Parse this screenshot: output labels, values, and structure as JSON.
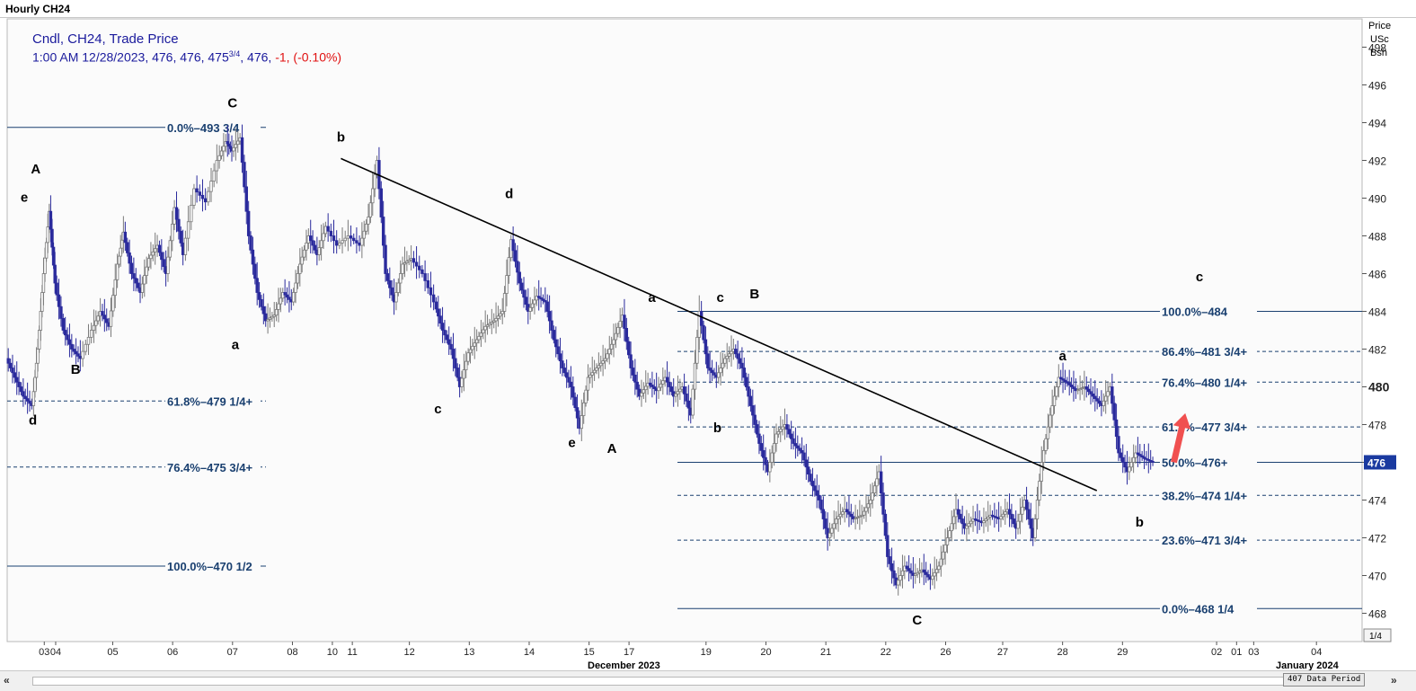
{
  "window": {
    "title": "Hourly CH24"
  },
  "legend": {
    "line1": "Cndl, CH24, Trade Price",
    "line2_prefix": "1:00 AM 12/28/2023, 476, 476, 475",
    "line2_frac": "3/4",
    "line2_mid": ", 476, ",
    "line2_change": "-1, (-0.10%)"
  },
  "axis": {
    "header": [
      "Price",
      "USc",
      "Bsh"
    ],
    "last_price_label": "476",
    "bold_tick": "480",
    "corner_label": "1/4",
    "month_labels": [
      "December 2023",
      "January 2024"
    ]
  },
  "footer": {
    "data_period": "407 Data Period",
    "left_btn": "«",
    "right_btn": "»"
  },
  "colors": {
    "candle": "#2a2a9c",
    "candle_up_wick": "#7a7a7a",
    "fib_line": "#1a4070",
    "fib_text": "#1a4070",
    "trendline": "#000000",
    "arrow": "#f05050",
    "price_badge_bg": "#1a3aa0"
  },
  "chart_data": {
    "type": "candlestick",
    "title": "Hourly CH24",
    "instrument": "CH24",
    "ylabel": "Price USc Bsh",
    "ylim": [
      466.5,
      499.5
    ],
    "yticks": [
      468,
      470,
      472,
      474,
      476,
      478,
      480,
      482,
      484,
      486,
      488,
      490,
      492,
      494,
      496,
      498
    ],
    "xlabel": "",
    "x_ticks": [
      {
        "label": "03",
        "t": 1.3
      },
      {
        "label": "04",
        "t": 1.7
      },
      {
        "label": "05",
        "t": 3.7
      },
      {
        "label": "06",
        "t": 5.8
      },
      {
        "label": "07",
        "t": 7.9
      },
      {
        "label": "08",
        "t": 10.0
      },
      {
        "label": "10",
        "t": 11.4
      },
      {
        "label": "11",
        "t": 12.1
      },
      {
        "label": "12",
        "t": 14.1
      },
      {
        "label": "13",
        "t": 16.2
      },
      {
        "label": "14",
        "t": 18.3
      },
      {
        "label": "15",
        "t": 20.4
      },
      {
        "label": "17",
        "t": 21.8
      },
      {
        "label": "19",
        "t": 24.5
      },
      {
        "label": "20",
        "t": 26.6
      },
      {
        "label": "21",
        "t": 28.7
      },
      {
        "label": "22",
        "t": 30.8
      },
      {
        "label": "26",
        "t": 32.9
      },
      {
        "label": "27",
        "t": 34.9
      },
      {
        "label": "28",
        "t": 37.0
      },
      {
        "label": "29",
        "t": 39.1
      },
      {
        "label": "02",
        "t": 42.4
      },
      {
        "label": "01",
        "t": 43.1
      },
      {
        "label": "03",
        "t": 43.7
      },
      {
        "label": "04",
        "t": 45.9
      }
    ],
    "price_path": [
      [
        0.0,
        481.5
      ],
      [
        0.3,
        480.5
      ],
      [
        0.6,
        479.5
      ],
      [
        0.9,
        479.0
      ],
      [
        1.1,
        482.0
      ],
      [
        1.3,
        486.0
      ],
      [
        1.5,
        489.3
      ],
      [
        1.7,
        485.5
      ],
      [
        2.0,
        483.0
      ],
      [
        2.3,
        482.0
      ],
      [
        2.6,
        481.5
      ],
      [
        3.0,
        483.0
      ],
      [
        3.3,
        484.0
      ],
      [
        3.6,
        483.2
      ],
      [
        3.9,
        486.5
      ],
      [
        4.1,
        488.2
      ],
      [
        4.4,
        486.0
      ],
      [
        4.7,
        485.0
      ],
      [
        5.0,
        486.8
      ],
      [
        5.3,
        487.5
      ],
      [
        5.6,
        486.0
      ],
      [
        5.9,
        489.5
      ],
      [
        6.2,
        487.0
      ],
      [
        6.6,
        490.5
      ],
      [
        7.0,
        489.8
      ],
      [
        7.4,
        492.0
      ],
      [
        7.7,
        493.0
      ],
      [
        7.9,
        492.5
      ],
      [
        8.2,
        493.2
      ],
      [
        8.5,
        488.0
      ],
      [
        8.8,
        485.0
      ],
      [
        9.1,
        483.5
      ],
      [
        9.4,
        483.8
      ],
      [
        9.7,
        485.0
      ],
      [
        10.0,
        484.5
      ],
      [
        10.3,
        486.5
      ],
      [
        10.6,
        488.0
      ],
      [
        10.9,
        487.0
      ],
      [
        11.2,
        488.5
      ],
      [
        11.6,
        487.5
      ],
      [
        12.0,
        488.0
      ],
      [
        12.4,
        487.5
      ],
      [
        12.7,
        489.0
      ],
      [
        13.0,
        492.0
      ],
      [
        13.3,
        486.0
      ],
      [
        13.6,
        484.5
      ],
      [
        13.9,
        486.5
      ],
      [
        14.2,
        486.8
      ],
      [
        14.6,
        486.0
      ],
      [
        15.0,
        484.5
      ],
      [
        15.3,
        483.0
      ],
      [
        15.6,
        482.0
      ],
      [
        15.9,
        480.0
      ],
      [
        16.2,
        481.8
      ],
      [
        16.5,
        482.5
      ],
      [
        16.8,
        483.2
      ],
      [
        17.1,
        483.5
      ],
      [
        17.4,
        484.0
      ],
      [
        17.7,
        487.8
      ],
      [
        18.0,
        485.5
      ],
      [
        18.3,
        484.0
      ],
      [
        18.6,
        484.8
      ],
      [
        18.9,
        484.5
      ],
      [
        19.2,
        482.5
      ],
      [
        19.5,
        481.0
      ],
      [
        19.8,
        480.0
      ],
      [
        20.1,
        477.8
      ],
      [
        20.4,
        480.5
      ],
      [
        20.7,
        481.0
      ],
      [
        21.0,
        481.5
      ],
      [
        21.3,
        482.5
      ],
      [
        21.6,
        483.8
      ],
      [
        21.9,
        481.0
      ],
      [
        22.2,
        479.5
      ],
      [
        22.5,
        480.2
      ],
      [
        22.8,
        479.8
      ],
      [
        23.1,
        480.5
      ],
      [
        23.4,
        479.5
      ],
      [
        23.7,
        480.0
      ],
      [
        24.0,
        478.5
      ],
      [
        24.3,
        484.0
      ],
      [
        24.6,
        481.0
      ],
      [
        24.9,
        480.5
      ],
      [
        25.2,
        481.5
      ],
      [
        25.5,
        482.0
      ],
      [
        25.8,
        481.0
      ],
      [
        26.1,
        479.0
      ],
      [
        26.4,
        477.0
      ],
      [
        26.7,
        475.5
      ],
      [
        27.0,
        477.5
      ],
      [
        27.3,
        478.0
      ],
      [
        27.6,
        477.0
      ],
      [
        27.9,
        476.5
      ],
      [
        28.2,
        475.0
      ],
      [
        28.5,
        474.0
      ],
      [
        28.8,
        472.0
      ],
      [
        29.1,
        473.0
      ],
      [
        29.4,
        473.5
      ],
      [
        29.7,
        473.0
      ],
      [
        30.0,
        473.2
      ],
      [
        30.3,
        474.0
      ],
      [
        30.6,
        475.5
      ],
      [
        30.9,
        471.0
      ],
      [
        31.2,
        469.5
      ],
      [
        31.5,
        470.5
      ],
      [
        31.8,
        470.0
      ],
      [
        32.1,
        470.3
      ],
      [
        32.4,
        469.8
      ],
      [
        32.7,
        470.5
      ],
      [
        33.0,
        472.0
      ],
      [
        33.3,
        473.5
      ],
      [
        33.6,
        472.5
      ],
      [
        33.9,
        473.0
      ],
      [
        34.2,
        472.8
      ],
      [
        34.5,
        473.2
      ],
      [
        34.8,
        473.0
      ],
      [
        35.1,
        473.5
      ],
      [
        35.4,
        472.5
      ],
      [
        35.7,
        474.0
      ],
      [
        36.0,
        472.0
      ],
      [
        36.3,
        476.0
      ],
      [
        36.6,
        478.5
      ],
      [
        36.9,
        480.5
      ],
      [
        37.2,
        480.2
      ],
      [
        37.5,
        479.8
      ],
      [
        37.8,
        480.0
      ],
      [
        38.1,
        479.5
      ],
      [
        38.4,
        479.0
      ],
      [
        38.7,
        480.0
      ],
      [
        39.0,
        476.5
      ],
      [
        39.3,
        475.5
      ],
      [
        39.6,
        476.5
      ],
      [
        39.9,
        476.2
      ],
      [
        40.2,
        476.0
      ]
    ],
    "trendline": {
      "start": {
        "t": 11.7,
        "price": 492.1
      },
      "end": {
        "t": 38.2,
        "price": 474.5
      }
    },
    "fib_sets": [
      {
        "name": "left",
        "levels": [
          {
            "price": 493.75,
            "pct": "0.0%",
            "price_label": "493 3/4",
            "style": "solid"
          },
          {
            "price": 479.25,
            "pct": "61.8%",
            "price_label": "479 1/4+",
            "style": "dashed"
          },
          {
            "price": 475.75,
            "pct": "76.4%",
            "price_label": "475 3/4+",
            "style": "dashed"
          },
          {
            "price": 470.5,
            "pct": "100.0%",
            "price_label": "470 1/2",
            "style": "solid"
          }
        ]
      },
      {
        "name": "right",
        "levels": [
          {
            "price": 484.0,
            "pct": "100.0%",
            "price_label": "484",
            "style": "solid"
          },
          {
            "price": 481.875,
            "pct": "86.4%",
            "price_label": "481 3/4+",
            "style": "dashed"
          },
          {
            "price": 480.25,
            "pct": "76.4%",
            "price_label": "480 1/4+",
            "style": "dashed"
          },
          {
            "price": 477.875,
            "pct": "61.8%",
            "price_label": "477 3/4+",
            "style": "dashed"
          },
          {
            "price": 476.0,
            "pct": "50.0%",
            "price_label": "476+",
            "style": "solid"
          },
          {
            "price": 474.25,
            "pct": "38.2%",
            "price_label": "474 1/4+",
            "style": "dashed"
          },
          {
            "price": 471.875,
            "pct": "23.6%",
            "price_label": "471 3/4+",
            "style": "dashed"
          },
          {
            "price": 468.25,
            "pct": "0.0%",
            "price_label": "468 1/4",
            "style": "solid"
          }
        ]
      }
    ],
    "wave_labels": [
      {
        "text": "A",
        "t": 1.0,
        "price": 491.3
      },
      {
        "text": "e",
        "t": 0.6,
        "price": 489.8
      },
      {
        "text": "d",
        "t": 0.9,
        "price": 478.0
      },
      {
        "text": "B",
        "t": 2.4,
        "price": 480.7
      },
      {
        "text": "C",
        "t": 7.9,
        "price": 494.8
      },
      {
        "text": "a",
        "t": 8.0,
        "price": 482.0
      },
      {
        "text": "b",
        "t": 11.7,
        "price": 493.0
      },
      {
        "text": "c",
        "t": 15.1,
        "price": 478.6
      },
      {
        "text": "d",
        "t": 17.6,
        "price": 490.0
      },
      {
        "text": "e",
        "t": 19.8,
        "price": 476.8
      },
      {
        "text": "A",
        "t": 21.2,
        "price": 476.5
      },
      {
        "text": "a",
        "t": 22.6,
        "price": 484.5
      },
      {
        "text": "c",
        "t": 25.0,
        "price": 484.5
      },
      {
        "text": "B",
        "t": 26.2,
        "price": 484.7
      },
      {
        "text": "b",
        "t": 24.9,
        "price": 477.6
      },
      {
        "text": "C",
        "t": 31.9,
        "price": 467.4
      },
      {
        "text": "a",
        "t": 37.0,
        "price": 481.4
      },
      {
        "text": "b",
        "t": 39.7,
        "price": 472.6
      },
      {
        "text": "c",
        "t": 41.8,
        "price": 485.6
      }
    ],
    "arrow": {
      "from": {
        "t": 40.9,
        "price": 476.0
      },
      "to": {
        "t": 41.3,
        "price": 478.6
      }
    },
    "last_price": 476
  }
}
